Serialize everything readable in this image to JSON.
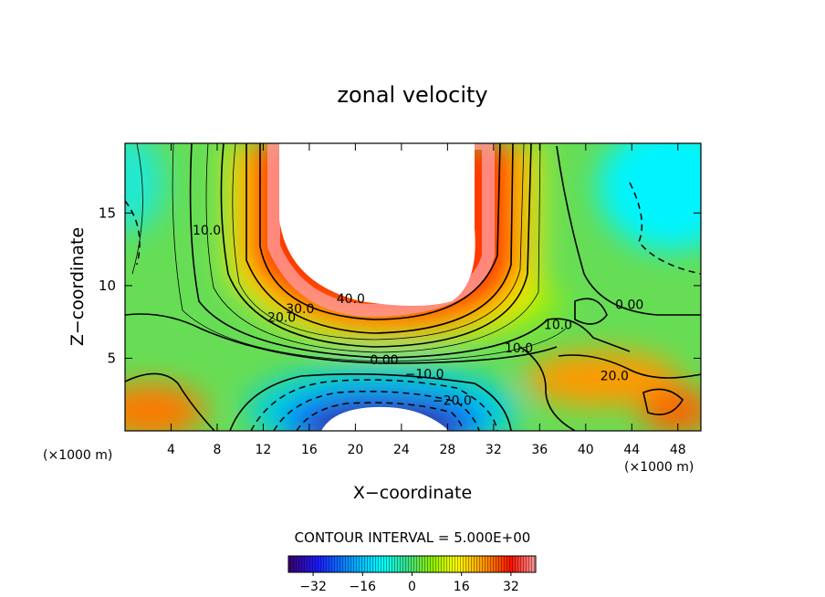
{
  "chart_data": {
    "type": "contour",
    "title": "zonal velocity",
    "xlabel": "X−coordinate",
    "ylabel": "Z−coordinate",
    "x_unit_label_left": "(×1000 m)",
    "x_unit_label_right": "(×1000 m)",
    "xlim": [
      0,
      50
    ],
    "ylim": [
      0,
      19.8
    ],
    "x_ticks": [
      4,
      8,
      12,
      16,
      20,
      24,
      28,
      32,
      36,
      40,
      44,
      48
    ],
    "y_ticks": [
      5,
      10,
      15
    ],
    "contour_interval_text": "CONTOUR INTERVAL = 5.000E+00",
    "contour_interval": 5,
    "contour_labels": [
      {
        "text": "40.0",
        "x": 19.6,
        "y": 8.8
      },
      {
        "text": "30.0",
        "x": 15.2,
        "y": 8.1
      },
      {
        "text": "20.0",
        "x": 13.6,
        "y": 7.5
      },
      {
        "text": "10.0",
        "x": 7.1,
        "y": 13.5
      },
      {
        "text": "0.00",
        "x": 22.5,
        "y": 4.6
      },
      {
        "text": "−10.0",
        "x": 26.0,
        "y": 3.6
      },
      {
        "text": "−20.0",
        "x": 28.4,
        "y": 1.8
      },
      {
        "text": "10.0",
        "x": 37.6,
        "y": 7.0
      },
      {
        "text": "10.0",
        "x": 34.2,
        "y": 5.4
      },
      {
        "text": "0.00",
        "x": 43.8,
        "y": 8.4
      },
      {
        "text": "20.0",
        "x": 42.5,
        "y": 3.5
      }
    ],
    "colorbar": {
      "min": -40,
      "max": 40,
      "tick_labels": [
        "−32",
        "−16",
        "0",
        "16",
        "32"
      ],
      "tick_values": [
        -32,
        -16,
        0,
        16,
        32
      ]
    },
    "colormap": [
      "#3b0070",
      "#1a1aff",
      "#00b4ff",
      "#00ffff",
      "#39e08a",
      "#8cf000",
      "#ffff00",
      "#ff8c00",
      "#ff1000",
      "#ff9a9a"
    ]
  }
}
